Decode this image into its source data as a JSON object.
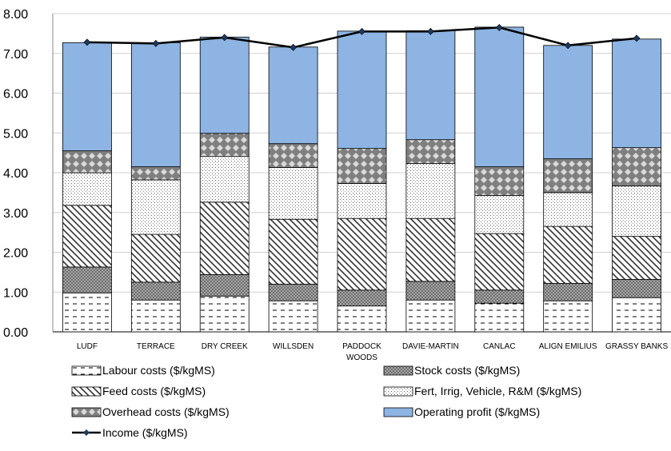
{
  "chart_data": {
    "type": "bar",
    "stacked": true,
    "categories": [
      "LUDF",
      "TERRACE",
      "DRY CREEK",
      "WILLSDEN",
      "PADDOCK WOODS",
      "DAVIE-MARTIN",
      "CANLAC",
      "ALIGN EMILIUS",
      "GRASSY BANKS"
    ],
    "y_ticks": [
      "0.00",
      "1.00",
      "2.00",
      "3.00",
      "4.00",
      "5.00",
      "6.00",
      "7.00",
      "8.00"
    ],
    "ylim": [
      0,
      8
    ],
    "grid": true,
    "legend_position": "bottom",
    "series": [
      {
        "name": "Labour costs ($/kgMS)",
        "pattern": "dashes",
        "values": [
          0.98,
          0.8,
          0.9,
          0.78,
          0.65,
          0.8,
          0.72,
          0.78,
          0.86
        ]
      },
      {
        "name": "Stock costs ($/kgMS)",
        "pattern": "crosshatch",
        "values": [
          0.65,
          0.45,
          0.54,
          0.42,
          0.4,
          0.47,
          0.33,
          0.44,
          0.46
        ]
      },
      {
        "name": "Feed costs ($/kgMS)",
        "pattern": "diagonal",
        "values": [
          1.55,
          1.2,
          1.82,
          1.63,
          1.8,
          1.58,
          1.42,
          1.43,
          1.08
        ]
      },
      {
        "name": "Fert, Irrig, Vehicle, R&M ($/kgMS)",
        "pattern": "dots",
        "values": [
          0.82,
          1.37,
          1.15,
          1.3,
          0.88,
          1.38,
          0.96,
          0.85,
          1.27
        ]
      },
      {
        "name": "Overhead costs ($/kgMS)",
        "pattern": "diamond",
        "values": [
          0.55,
          0.33,
          0.58,
          0.6,
          0.88,
          0.6,
          0.72,
          0.85,
          0.96
        ]
      },
      {
        "name": "Operating profit ($/kgMS)",
        "pattern": "solid",
        "color": "#8db4e2",
        "values": [
          2.72,
          3.12,
          2.42,
          2.43,
          2.95,
          2.74,
          3.51,
          2.85,
          2.73
        ]
      }
    ],
    "line": {
      "name": "Income ($/kgMS)",
      "color": "#000000",
      "marker_color": "#1f3a5f",
      "values": [
        7.28,
        7.25,
        7.4,
        7.15,
        7.55,
        7.55,
        7.65,
        7.2,
        7.38
      ]
    }
  }
}
